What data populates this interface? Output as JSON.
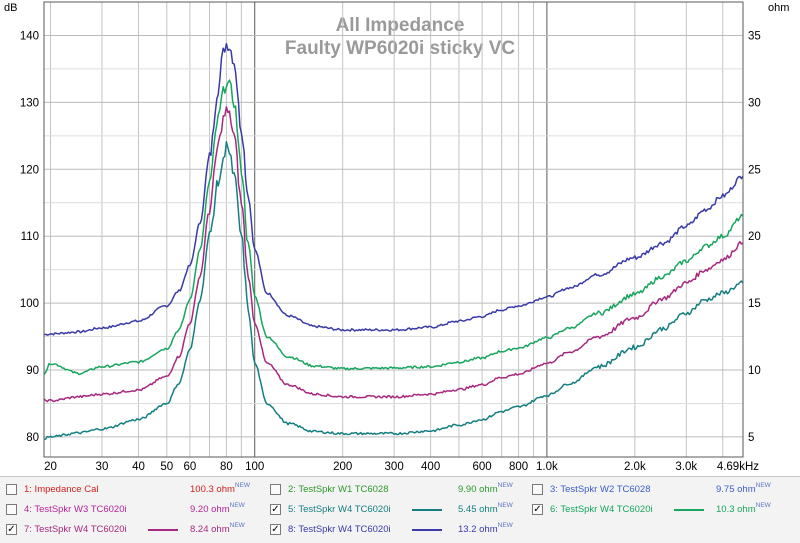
{
  "chart_data": {
    "type": "line",
    "title": "All Impedance",
    "subtitle": "Faulty WP6020i sticky VC",
    "y_left_unit": "dB",
    "y_right_unit": "ohm",
    "x_scale": "log",
    "xlim": [
      19,
      4690
    ],
    "ylim_left": [
      77,
      145
    ],
    "y_left_ticks": [
      "80",
      "90",
      "100",
      "110",
      "120",
      "130",
      "140"
    ],
    "y_right_ticks": [
      "5",
      "10",
      "15",
      "20",
      "25",
      "30",
      "35"
    ],
    "x_ticks": [
      {
        "v": 20,
        "label": "20"
      },
      {
        "v": 30,
        "label": "30"
      },
      {
        "v": 40,
        "label": "40"
      },
      {
        "v": 50,
        "label": "50"
      },
      {
        "v": 60,
        "label": "60"
      },
      {
        "v": 80,
        "label": "80"
      },
      {
        "v": 100,
        "label": "100"
      },
      {
        "v": 200,
        "label": "200"
      },
      {
        "v": 300,
        "label": "300"
      },
      {
        "v": 400,
        "label": "400"
      },
      {
        "v": 600,
        "label": "600"
      },
      {
        "v": 800,
        "label": "800"
      },
      {
        "v": 1000,
        "label": "1.0k"
      },
      {
        "v": 2000,
        "label": "2.0k"
      },
      {
        "v": 3000,
        "label": "3.0k"
      },
      {
        "v": 4690,
        "label": "4.69kHz"
      }
    ],
    "series": [
      {
        "name": "8: TestSpkr W4 TC6020i",
        "color": "#3a3aa8",
        "x": [
          19,
          20,
          25,
          30,
          40,
          50,
          55,
          60,
          65,
          70,
          75,
          78,
          80,
          82,
          85,
          90,
          95,
          100,
          110,
          130,
          160,
          200,
          300,
          400,
          500,
          600,
          700,
          800,
          1000,
          1200,
          1500,
          2000,
          2500,
          3000,
          3500,
          4000,
          4690
        ],
        "y": [
          95.3,
          95.4,
          95.7,
          96.3,
          97.3,
          99.6,
          101.8,
          105.6,
          112.0,
          121.8,
          132.0,
          137.5,
          138.8,
          138.3,
          136.0,
          126.0,
          116.0,
          108.0,
          101.5,
          98.1,
          96.5,
          96.0,
          96.0,
          96.4,
          97.3,
          98.0,
          99.0,
          99.6,
          100.9,
          102.3,
          104.3,
          106.8,
          109.0,
          111.5,
          114.0,
          116.0,
          119.0
        ]
      },
      {
        "name": "6: TestSpkr W4 TC6020i",
        "color": "#17a65e",
        "x": [
          19,
          20,
          25,
          30,
          40,
          50,
          55,
          60,
          65,
          70,
          75,
          78,
          80,
          82,
          85,
          90,
          95,
          100,
          110,
          130,
          160,
          200,
          300,
          400,
          500,
          600,
          700,
          800,
          1000,
          1200,
          1500,
          2000,
          2500,
          3000,
          3500,
          4000,
          4690
        ],
        "y": [
          89.5,
          91.0,
          89.5,
          90.5,
          91.2,
          93.2,
          96.0,
          100.5,
          108.0,
          118.0,
          127.5,
          131.5,
          133.0,
          132.5,
          130.0,
          120.0,
          109.0,
          101.0,
          95.0,
          92.0,
          90.6,
          90.2,
          90.3,
          90.5,
          91.2,
          91.8,
          92.8,
          93.3,
          94.8,
          96.3,
          98.5,
          101.3,
          104.0,
          106.3,
          108.5,
          110.0,
          113.0
        ]
      },
      {
        "name": "7: TestSpkr W4 TC6020i",
        "color": "#a8287f",
        "x": [
          19,
          20,
          25,
          30,
          40,
          50,
          55,
          60,
          65,
          70,
          75,
          78,
          80,
          82,
          85,
          90,
          95,
          100,
          110,
          130,
          160,
          200,
          300,
          400,
          500,
          600,
          700,
          800,
          1000,
          1200,
          1500,
          2000,
          2500,
          3000,
          3500,
          4000,
          4690
        ],
        "y": [
          85.5,
          85.4,
          86.0,
          86.4,
          87.0,
          89.0,
          92.0,
          97.0,
          104.0,
          114.0,
          123.5,
          127.5,
          128.8,
          128.0,
          125.0,
          115.0,
          104.0,
          97.0,
          91.0,
          87.8,
          86.4,
          86.0,
          86.0,
          86.4,
          87.1,
          87.8,
          88.9,
          89.4,
          91.0,
          92.7,
          95.0,
          97.8,
          100.7,
          103.0,
          105.0,
          106.5,
          109.0
        ]
      },
      {
        "name": "5: TestSpkr W4 TC6020i",
        "color": "#137f80",
        "x": [
          19,
          20,
          25,
          30,
          40,
          50,
          55,
          60,
          65,
          70,
          75,
          78,
          80,
          82,
          85,
          90,
          95,
          100,
          110,
          130,
          160,
          200,
          300,
          400,
          500,
          600,
          700,
          800,
          1000,
          1200,
          1500,
          2000,
          2500,
          3000,
          3500,
          4000,
          4690
        ],
        "y": [
          79.8,
          80.0,
          80.6,
          81.2,
          82.6,
          85.0,
          88.0,
          93.0,
          100.5,
          110.0,
          118.0,
          121.0,
          124.5,
          122.0,
          119.0,
          110.0,
          99.0,
          91.0,
          85.0,
          82.0,
          80.8,
          80.5,
          80.5,
          80.9,
          81.8,
          82.6,
          83.8,
          84.5,
          86.2,
          88.0,
          90.5,
          93.4,
          96.2,
          98.5,
          100.5,
          101.5,
          103.0
        ]
      }
    ],
    "grid": true,
    "legend_position": "bottom"
  },
  "legend": [
    {
      "label": "1: Impedance Cal",
      "value": "100.3 ohm",
      "tag": "NEW",
      "checked": false,
      "color": "#d02020",
      "label_color": "#d02020"
    },
    {
      "label": "2: TestSpkr W1 TC6028",
      "value": "9.90 ohm",
      "tag": "NEW",
      "checked": false,
      "color": "#2a9a2a",
      "label_color": "#2a9a2a"
    },
    {
      "label": "3: TestSpkr W2 TC6028",
      "value": "9.75 ohm",
      "tag": "NEW",
      "checked": false,
      "color": "#3b5fc9",
      "label_color": "#3b5fc9"
    },
    {
      "label": "4: TestSpkr W3 TC6020i",
      "value": "9.20 ohm",
      "tag": "NEW",
      "checked": false,
      "color": "#b8249a",
      "label_color": "#b8249a"
    },
    {
      "label": "5: TestSpkr W4 TC6020i",
      "value": "5.45 ohm",
      "tag": "NEW",
      "checked": true,
      "color": "#137f80",
      "label_color": "#137f80"
    },
    {
      "label": "6: TestSpkr W4 TC6020i",
      "value": "10.3 ohm",
      "tag": "NEW",
      "checked": true,
      "color": "#17a65e",
      "label_color": "#17a65e"
    },
    {
      "label": "7: TestSpkr W4 TC6020i",
      "value": "8.24 ohm",
      "tag": "NEW",
      "checked": true,
      "color": "#a8287f",
      "label_color": "#a8287f"
    },
    {
      "label": "8: TestSpkr W4 TC6020i",
      "value": "13.2 ohm",
      "tag": "NEW",
      "checked": true,
      "color": "#3a3aa8",
      "label_color": "#3a3aa8"
    }
  ]
}
